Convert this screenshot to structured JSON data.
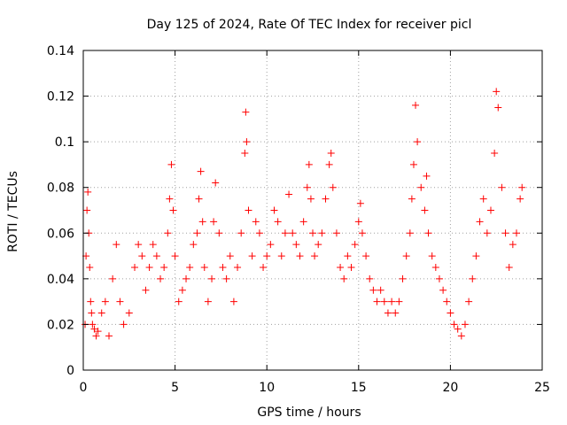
{
  "chart_data": {
    "type": "scatter",
    "title": "Day 125 of 2024, Rate Of TEC Index for receiver picl",
    "xlabel": "GPS time / hours",
    "ylabel": "ROTI / TECUs",
    "xlim": [
      0,
      25
    ],
    "ylim": [
      0,
      0.14
    ],
    "xticks": [
      "0",
      "5",
      "10",
      "15",
      "20",
      "25"
    ],
    "yticks": [
      "0",
      "0.02",
      "0.04",
      "0.06",
      "0.08",
      "0.1",
      "0.12",
      "0.14"
    ],
    "grid": true,
    "marker": "+",
    "color": "#ff0000",
    "series": [
      {
        "name": "ROTI",
        "x": [
          0.1,
          0.15,
          0.2,
          0.25,
          0.3,
          0.35,
          0.4,
          0.45,
          0.5,
          0.6,
          0.7,
          0.8,
          1.0,
          1.2,
          1.4,
          1.6,
          1.8,
          2.0,
          2.2,
          2.5,
          2.8,
          3.0,
          3.2,
          3.4,
          3.6,
          3.8,
          4.0,
          4.2,
          4.4,
          4.6,
          4.7,
          4.8,
          4.9,
          5.0,
          5.2,
          5.4,
          5.6,
          5.8,
          6.0,
          6.2,
          6.3,
          6.4,
          6.5,
          6.6,
          6.8,
          7.0,
          7.1,
          7.2,
          7.4,
          7.6,
          7.8,
          8.0,
          8.2,
          8.4,
          8.6,
          8.8,
          8.85,
          8.9,
          9.0,
          9.2,
          9.4,
          9.6,
          9.8,
          10.0,
          10.2,
          10.4,
          10.6,
          10.8,
          11.0,
          11.2,
          11.4,
          11.6,
          11.8,
          12.0,
          12.2,
          12.3,
          12.4,
          12.5,
          12.6,
          12.8,
          13.0,
          13.2,
          13.4,
          13.5,
          13.6,
          13.8,
          14.0,
          14.2,
          14.4,
          14.6,
          14.8,
          15.0,
          15.1,
          15.2,
          15.4,
          15.6,
          15.8,
          16.0,
          16.2,
          16.4,
          16.6,
          16.8,
          17.0,
          17.2,
          17.4,
          17.6,
          17.8,
          17.9,
          18.0,
          18.1,
          18.2,
          18.4,
          18.6,
          18.7,
          18.8,
          19.0,
          19.2,
          19.4,
          19.6,
          19.8,
          20.0,
          20.2,
          20.4,
          20.6,
          20.8,
          21.0,
          21.2,
          21.4,
          21.6,
          21.8,
          22.0,
          22.2,
          22.4,
          22.5,
          22.6,
          22.8,
          23.0,
          23.2,
          23.4,
          23.6,
          23.8,
          23.9
        ],
        "y": [
          0.02,
          0.05,
          0.07,
          0.078,
          0.06,
          0.045,
          0.03,
          0.025,
          0.02,
          0.018,
          0.015,
          0.017,
          0.025,
          0.03,
          0.015,
          0.04,
          0.055,
          0.03,
          0.02,
          0.025,
          0.045,
          0.055,
          0.05,
          0.035,
          0.045,
          0.055,
          0.05,
          0.04,
          0.045,
          0.06,
          0.075,
          0.09,
          0.07,
          0.05,
          0.03,
          0.035,
          0.04,
          0.045,
          0.055,
          0.06,
          0.075,
          0.087,
          0.065,
          0.045,
          0.03,
          0.04,
          0.065,
          0.082,
          0.06,
          0.045,
          0.04,
          0.05,
          0.03,
          0.045,
          0.06,
          0.095,
          0.113,
          0.1,
          0.07,
          0.05,
          0.065,
          0.06,
          0.045,
          0.05,
          0.055,
          0.07,
          0.065,
          0.05,
          0.06,
          0.077,
          0.06,
          0.055,
          0.05,
          0.065,
          0.08,
          0.09,
          0.075,
          0.06,
          0.05,
          0.055,
          0.06,
          0.075,
          0.09,
          0.095,
          0.08,
          0.06,
          0.045,
          0.04,
          0.05,
          0.045,
          0.055,
          0.065,
          0.073,
          0.06,
          0.05,
          0.04,
          0.035,
          0.03,
          0.035,
          0.03,
          0.025,
          0.03,
          0.025,
          0.03,
          0.04,
          0.05,
          0.06,
          0.075,
          0.09,
          0.116,
          0.1,
          0.08,
          0.07,
          0.085,
          0.06,
          0.05,
          0.045,
          0.04,
          0.035,
          0.03,
          0.025,
          0.02,
          0.018,
          0.015,
          0.02,
          0.03,
          0.04,
          0.05,
          0.065,
          0.075,
          0.06,
          0.07,
          0.095,
          0.122,
          0.115,
          0.08,
          0.06,
          0.045,
          0.055,
          0.06,
          0.075,
          0.08
        ]
      }
    ]
  }
}
